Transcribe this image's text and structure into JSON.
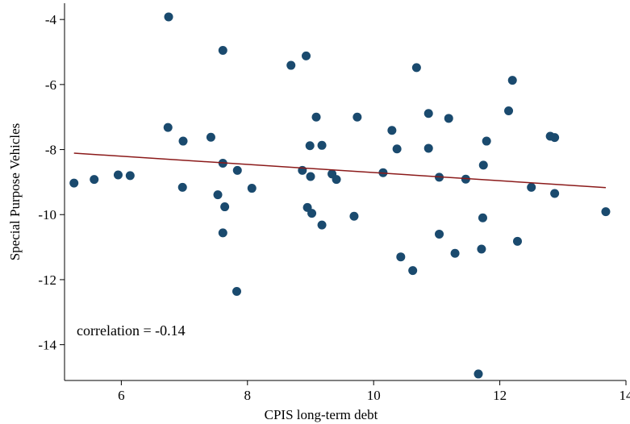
{
  "chart_data": {
    "type": "scatter",
    "title": "",
    "xlabel": "CPIS long-term debt",
    "ylabel": "Special Purpose Vehicles",
    "xlim": [
      5.1,
      14.0
    ],
    "ylim": [
      -15.1,
      -3.5
    ],
    "xticks": [
      6,
      8,
      10,
      12,
      14
    ],
    "yticks": [
      -4,
      -6,
      -8,
      -10,
      -12,
      -14
    ],
    "grid": false,
    "legend": "none",
    "annotation": "correlation = -0.14",
    "colors": {
      "points": "#1a4a6e",
      "fit_line": "#8b1a1a",
      "axis": "#000000"
    },
    "points": [
      {
        "x": 5.25,
        "y": -9.03
      },
      {
        "x": 5.57,
        "y": -8.92
      },
      {
        "x": 5.95,
        "y": -8.78
      },
      {
        "x": 6.14,
        "y": -8.8
      },
      {
        "x": 6.75,
        "y": -3.92
      },
      {
        "x": 6.74,
        "y": -7.32
      },
      {
        "x": 6.98,
        "y": -7.74
      },
      {
        "x": 6.97,
        "y": -9.16
      },
      {
        "x": 7.42,
        "y": -7.62
      },
      {
        "x": 7.53,
        "y": -9.39
      },
      {
        "x": 7.61,
        "y": -4.95
      },
      {
        "x": 7.61,
        "y": -8.42
      },
      {
        "x": 7.64,
        "y": -9.76
      },
      {
        "x": 7.61,
        "y": -10.56
      },
      {
        "x": 7.84,
        "y": -8.64
      },
      {
        "x": 7.83,
        "y": -12.36
      },
      {
        "x": 8.07,
        "y": -9.19
      },
      {
        "x": 8.69,
        "y": -5.41
      },
      {
        "x": 8.87,
        "y": -8.64
      },
      {
        "x": 8.93,
        "y": -5.12
      },
      {
        "x": 8.95,
        "y": -9.78
      },
      {
        "x": 8.99,
        "y": -7.88
      },
      {
        "x": 9.0,
        "y": -8.83
      },
      {
        "x": 9.02,
        "y": -9.96
      },
      {
        "x": 9.09,
        "y": -7.0
      },
      {
        "x": 9.18,
        "y": -7.87
      },
      {
        "x": 9.18,
        "y": -10.32
      },
      {
        "x": 9.34,
        "y": -8.75
      },
      {
        "x": 9.41,
        "y": -8.92
      },
      {
        "x": 9.69,
        "y": -10.05
      },
      {
        "x": 9.74,
        "y": -7.0
      },
      {
        "x": 10.15,
        "y": -8.71
      },
      {
        "x": 10.29,
        "y": -7.41
      },
      {
        "x": 10.37,
        "y": -7.98
      },
      {
        "x": 10.43,
        "y": -11.3
      },
      {
        "x": 10.62,
        "y": -11.72
      },
      {
        "x": 10.68,
        "y": -5.48
      },
      {
        "x": 10.87,
        "y": -6.89
      },
      {
        "x": 10.87,
        "y": -7.96
      },
      {
        "x": 11.04,
        "y": -8.85
      },
      {
        "x": 11.04,
        "y": -10.6
      },
      {
        "x": 11.19,
        "y": -7.04
      },
      {
        "x": 11.29,
        "y": -11.19
      },
      {
        "x": 11.46,
        "y": -8.91
      },
      {
        "x": 11.66,
        "y": -14.9
      },
      {
        "x": 11.71,
        "y": -11.06
      },
      {
        "x": 11.73,
        "y": -10.1
      },
      {
        "x": 11.74,
        "y": -8.48
      },
      {
        "x": 11.79,
        "y": -7.74
      },
      {
        "x": 12.14,
        "y": -6.81
      },
      {
        "x": 12.2,
        "y": -5.87
      },
      {
        "x": 12.28,
        "y": -10.82
      },
      {
        "x": 12.5,
        "y": -9.16
      },
      {
        "x": 12.8,
        "y": -7.59
      },
      {
        "x": 12.87,
        "y": -7.63
      },
      {
        "x": 12.87,
        "y": -9.35
      },
      {
        "x": 13.68,
        "y": -9.91
      }
    ],
    "fit_line": {
      "x": [
        5.25,
        13.68
      ],
      "y": [
        -8.11,
        -9.17
      ]
    }
  }
}
